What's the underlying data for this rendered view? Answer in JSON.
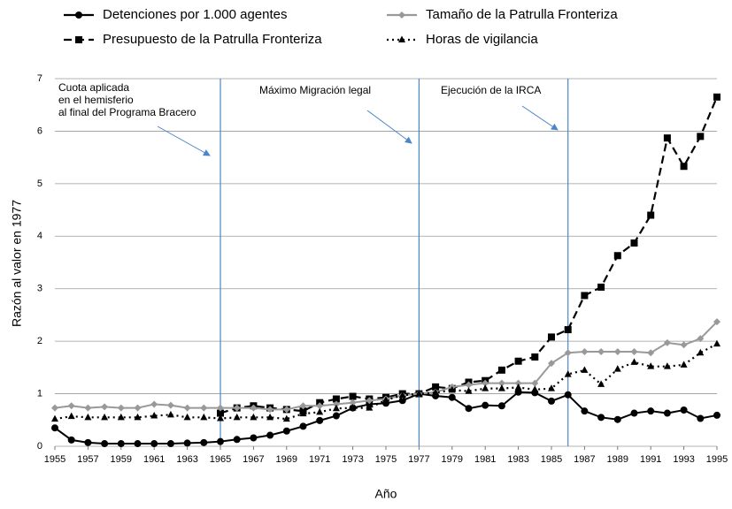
{
  "chart_data": {
    "type": "line",
    "y_label": "Razón al valor en 1977",
    "x_label": "Año",
    "xlim": [
      1955,
      1995
    ],
    "xticks": [
      1955,
      1957,
      1959,
      1961,
      1963,
      1965,
      1967,
      1969,
      1971,
      1973,
      1975,
      1977,
      1979,
      1981,
      1983,
      1985,
      1987,
      1989,
      1991,
      1993,
      1995
    ],
    "ylim": [
      0,
      7
    ],
    "yticks": [
      0,
      1,
      2,
      3,
      4,
      5,
      6,
      7
    ],
    "grid": true,
    "x": [
      1955,
      1956,
      1957,
      1958,
      1959,
      1960,
      1961,
      1962,
      1963,
      1964,
      1965,
      1966,
      1967,
      1968,
      1969,
      1970,
      1971,
      1972,
      1973,
      1974,
      1975,
      1976,
      1977,
      1978,
      1979,
      1980,
      1981,
      1982,
      1983,
      1984,
      1985,
      1986,
      1987,
      1988,
      1989,
      1990,
      1991,
      1992,
      1993,
      1994,
      1995
    ],
    "series": [
      {
        "name": "Detenciones por 1.000 agentes",
        "color": "#000000",
        "marker": "circle",
        "dash": "solid",
        "values": [
          0.35,
          0.12,
          0.07,
          0.05,
          0.05,
          0.05,
          0.05,
          0.05,
          0.06,
          0.07,
          0.09,
          0.13,
          0.16,
          0.21,
          0.29,
          0.38,
          0.49,
          0.58,
          0.73,
          0.8,
          0.82,
          0.87,
          1.0,
          0.96,
          0.93,
          0.72,
          0.78,
          0.77,
          1.03,
          1.02,
          0.86,
          0.98,
          0.67,
          0.55,
          0.51,
          0.63,
          0.67,
          0.63,
          0.69,
          0.53,
          0.59
        ]
      },
      {
        "name": "Presupuesto de la Patrulla Fronteriza",
        "color": "#000000",
        "marker": "square",
        "dash": "dash",
        "values": [
          null,
          null,
          null,
          null,
          null,
          null,
          null,
          null,
          null,
          null,
          0.63,
          0.73,
          0.77,
          0.73,
          0.7,
          0.67,
          0.83,
          0.9,
          0.95,
          0.9,
          0.93,
          1.0,
          1.0,
          1.13,
          1.1,
          1.22,
          1.25,
          1.45,
          1.62,
          1.7,
          2.08,
          2.22,
          2.87,
          3.03,
          3.63,
          3.87,
          4.4,
          5.87,
          5.33,
          5.9,
          6.65
        ]
      },
      {
        "name": "Tamaño de la Patrulla Fronteriza",
        "color": "#999999",
        "marker": "diamond",
        "dash": "solid",
        "values": [
          0.73,
          0.77,
          0.73,
          0.75,
          0.73,
          0.73,
          0.8,
          0.78,
          0.73,
          0.73,
          0.73,
          0.73,
          0.73,
          0.7,
          0.7,
          0.77,
          0.77,
          0.8,
          0.83,
          0.87,
          0.9,
          0.97,
          1.0,
          1.03,
          1.13,
          1.17,
          1.2,
          1.2,
          1.2,
          1.2,
          1.58,
          1.78,
          1.8,
          1.8,
          1.8,
          1.8,
          1.78,
          1.97,
          1.93,
          2.05,
          2.37
        ]
      },
      {
        "name": "Horas de vigilancia",
        "color": "#000000",
        "marker": "triangle",
        "dash": "dot",
        "values": [
          0.52,
          0.57,
          0.55,
          0.55,
          0.55,
          0.55,
          0.58,
          0.6,
          0.55,
          0.55,
          0.53,
          0.55,
          0.55,
          0.55,
          0.52,
          0.62,
          0.65,
          0.72,
          0.73,
          0.73,
          0.88,
          0.97,
          1.0,
          1.02,
          1.07,
          1.05,
          1.1,
          1.1,
          1.12,
          1.08,
          1.1,
          1.37,
          1.45,
          1.18,
          1.47,
          1.6,
          1.52,
          1.52,
          1.55,
          1.78,
          1.95
        ]
      }
    ],
    "vlines": [
      1965,
      1977,
      1986
    ],
    "vline_color": "#4a86c8",
    "annotations": [
      [
        "Cuota aplicada",
        "en el hemisferio",
        "al final del Programa Bracero"
      ],
      [
        "Máximo Migración legal"
      ],
      [
        "Ejecución de la IRCA"
      ]
    ]
  }
}
